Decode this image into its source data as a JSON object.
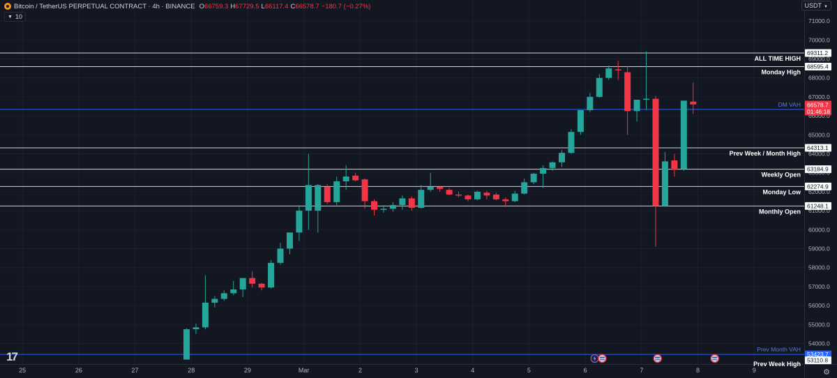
{
  "header": {
    "symbol": "Bitcoin / TetherUS PERPETUAL CONTRACT · 4h · BINANCE",
    "ohlc": [
      {
        "k": "O",
        "v": "66759.3"
      },
      {
        "k": "H",
        "v": "67729.5"
      },
      {
        "k": "L",
        "v": "66117.4"
      },
      {
        "k": "C",
        "v": "66578.7"
      }
    ],
    "change": "−180.7 (−0.27%)",
    "indicator_count": "10",
    "currency": "USDT",
    "currency_icon": "chevron-down-icon"
  },
  "colors": {
    "background": "#131722",
    "up": "#26a69a",
    "down": "#f23645",
    "level_line": "#d1d4dc",
    "vah_line": "#2962ff",
    "vah_label": "#5b7bd6"
  },
  "chart_data": {
    "type": "candlestick",
    "y_range": [
      53100,
      71300
    ],
    "y_ticks": [
      "71000.0",
      "70000.0",
      "69000.0",
      "68000.0",
      "67000.0",
      "66000.0",
      "65000.0",
      "64000.0",
      "63000.0",
      "62000.0",
      "61000.0",
      "60000.0",
      "59000.0",
      "58000.0",
      "57000.0",
      "56000.0",
      "55000.0",
      "54000.0"
    ],
    "y_tick_values": [
      71000,
      70000,
      69000,
      68000,
      67000,
      66000,
      65000,
      64000,
      63000,
      62000,
      61000,
      60000,
      59000,
      58000,
      57000,
      56000,
      55000,
      54000
    ],
    "x_ticks": [
      {
        "label": "25",
        "i": -17.5
      },
      {
        "label": "26",
        "i": -11.5
      },
      {
        "label": "27",
        "i": -5.5
      },
      {
        "label": "28",
        "i": 0.5
      },
      {
        "label": "29",
        "i": 6.5
      },
      {
        "label": "Mar",
        "i": 12.5
      },
      {
        "label": "2",
        "i": 18.5
      },
      {
        "label": "3",
        "i": 24.5
      },
      {
        "label": "4",
        "i": 30.5
      },
      {
        "label": "5",
        "i": 36.5
      },
      {
        "label": "6",
        "i": 42.5
      },
      {
        "label": "7",
        "i": 48.5
      },
      {
        "label": "8",
        "i": 54.5
      },
      {
        "label": "9",
        "i": 60.5
      }
    ],
    "candles": [
      {
        "o": 53150,
        "h": 54800,
        "l": 53150,
        "c": 54750
      },
      {
        "o": 54750,
        "h": 55050,
        "l": 54500,
        "c": 54850
      },
      {
        "o": 54850,
        "h": 57600,
        "l": 54750,
        "c": 56150
      },
      {
        "o": 56150,
        "h": 56500,
        "l": 55900,
        "c": 56350
      },
      {
        "o": 56350,
        "h": 56800,
        "l": 56250,
        "c": 56650
      },
      {
        "o": 56650,
        "h": 57300,
        "l": 56550,
        "c": 56850
      },
      {
        "o": 56850,
        "h": 57350,
        "l": 56450,
        "c": 57450
      },
      {
        "o": 57450,
        "h": 57800,
        "l": 56950,
        "c": 57150
      },
      {
        "o": 57150,
        "h": 57200,
        "l": 56800,
        "c": 56950
      },
      {
        "o": 56950,
        "h": 58400,
        "l": 56900,
        "c": 58250
      },
      {
        "o": 58250,
        "h": 59300,
        "l": 58150,
        "c": 59000
      },
      {
        "o": 59000,
        "h": 59700,
        "l": 58700,
        "c": 59850
      },
      {
        "o": 59850,
        "h": 61300,
        "l": 59400,
        "c": 61000
      },
      {
        "o": 61000,
        "h": 64000,
        "l": 60000,
        "c": 62350
      },
      {
        "o": 61000,
        "h": 62400,
        "l": 59850,
        "c": 62350
      },
      {
        "o": 62250,
        "h": 62400,
        "l": 61350,
        "c": 61450
      },
      {
        "o": 61450,
        "h": 62800,
        "l": 61300,
        "c": 62550
      },
      {
        "o": 62550,
        "h": 63400,
        "l": 62100,
        "c": 62800
      },
      {
        "o": 62850,
        "h": 63000,
        "l": 62550,
        "c": 62600
      },
      {
        "o": 62650,
        "h": 62700,
        "l": 61100,
        "c": 61500
      },
      {
        "o": 61500,
        "h": 61600,
        "l": 60750,
        "c": 61050
      },
      {
        "o": 61050,
        "h": 61300,
        "l": 60900,
        "c": 61100
      },
      {
        "o": 61100,
        "h": 61450,
        "l": 60950,
        "c": 61300
      },
      {
        "o": 61300,
        "h": 61800,
        "l": 61050,
        "c": 61650
      },
      {
        "o": 61650,
        "h": 61750,
        "l": 61000,
        "c": 61150
      },
      {
        "o": 61150,
        "h": 62350,
        "l": 61100,
        "c": 62100
      },
      {
        "o": 62100,
        "h": 63000,
        "l": 62000,
        "c": 62250
      },
      {
        "o": 62250,
        "h": 62300,
        "l": 62000,
        "c": 62150
      },
      {
        "o": 62100,
        "h": 62200,
        "l": 61800,
        "c": 61850
      },
      {
        "o": 61850,
        "h": 62000,
        "l": 61700,
        "c": 61800
      },
      {
        "o": 61800,
        "h": 61850,
        "l": 61500,
        "c": 61600
      },
      {
        "o": 61600,
        "h": 62050,
        "l": 61550,
        "c": 62000
      },
      {
        "o": 61950,
        "h": 62050,
        "l": 61600,
        "c": 61800
      },
      {
        "o": 61850,
        "h": 61950,
        "l": 61550,
        "c": 61600
      },
      {
        "o": 61600,
        "h": 61700,
        "l": 61200,
        "c": 61500
      },
      {
        "o": 61500,
        "h": 62050,
        "l": 61450,
        "c": 61900
      },
      {
        "o": 61900,
        "h": 62700,
        "l": 61850,
        "c": 62500
      },
      {
        "o": 62500,
        "h": 63000,
        "l": 62400,
        "c": 62950
      },
      {
        "o": 62950,
        "h": 63400,
        "l": 62200,
        "c": 63250
      },
      {
        "o": 63250,
        "h": 63600,
        "l": 63100,
        "c": 63550
      },
      {
        "o": 63550,
        "h": 64200,
        "l": 63300,
        "c": 64050
      },
      {
        "o": 64050,
        "h": 65300,
        "l": 64000,
        "c": 65150
      },
      {
        "o": 65150,
        "h": 66250,
        "l": 65000,
        "c": 66300
      },
      {
        "o": 66300,
        "h": 67200,
        "l": 66200,
        "c": 67000
      },
      {
        "o": 67000,
        "h": 68200,
        "l": 66950,
        "c": 68000
      },
      {
        "o": 68000,
        "h": 68650,
        "l": 67900,
        "c": 68500
      },
      {
        "o": 68450,
        "h": 68900,
        "l": 67900,
        "c": 68400
      },
      {
        "o": 68300,
        "h": 68600,
        "l": 65000,
        "c": 66250
      },
      {
        "o": 66250,
        "h": 66850,
        "l": 65700,
        "c": 66850
      },
      {
        "o": 66850,
        "h": 69400,
        "l": 66300,
        "c": 66900
      },
      {
        "o": 66900,
        "h": 67050,
        "l": 59100,
        "c": 61250
      },
      {
        "o": 61250,
        "h": 64100,
        "l": 61200,
        "c": 63600
      },
      {
        "o": 63650,
        "h": 64000,
        "l": 62800,
        "c": 63150
      },
      {
        "o": 63200,
        "h": 66800,
        "l": 63100,
        "c": 66800
      },
      {
        "o": 66750,
        "h": 67750,
        "l": 66100,
        "c": 66600
      }
    ],
    "levels": [
      {
        "label": "ALL TIME HIGH",
        "tag": "69311.2",
        "value": 69311.2
      },
      {
        "label": "Monday High",
        "tag": "68595.4",
        "value": 68595.4
      },
      {
        "label": "Prev Week / Month High",
        "tag": "64313.1",
        "value": 64313.1
      },
      {
        "label": "Weekly Open",
        "tag": "63184.9",
        "value": 63184.9
      },
      {
        "label": "Monday Low",
        "tag": "62274.9",
        "value": 62274.9
      },
      {
        "label": "Monthly Open",
        "tag": "61248.1",
        "value": 61248.1
      }
    ],
    "vah_lines": [
      {
        "label": "DM VAH",
        "tag": "66336.9",
        "value": 66336.9
      },
      {
        "label": "Prev Month VAH",
        "tag": "53423.7",
        "value": 53423.7
      }
    ],
    "partial_level": {
      "label": "Prev Week High",
      "tag": "53110.8",
      "value": 53110.8
    },
    "price": {
      "value": 66578.7,
      "tag": "66578.7",
      "countdown": "01:46:18"
    },
    "event_markers": [
      {
        "i": 43.5,
        "icon": "lightning-icon"
      },
      {
        "i": 44.3,
        "icon": "flag-icon"
      },
      {
        "i": 50.2,
        "icon": "flag-icon"
      },
      {
        "i": 56.3,
        "icon": "flag-icon"
      }
    ]
  }
}
